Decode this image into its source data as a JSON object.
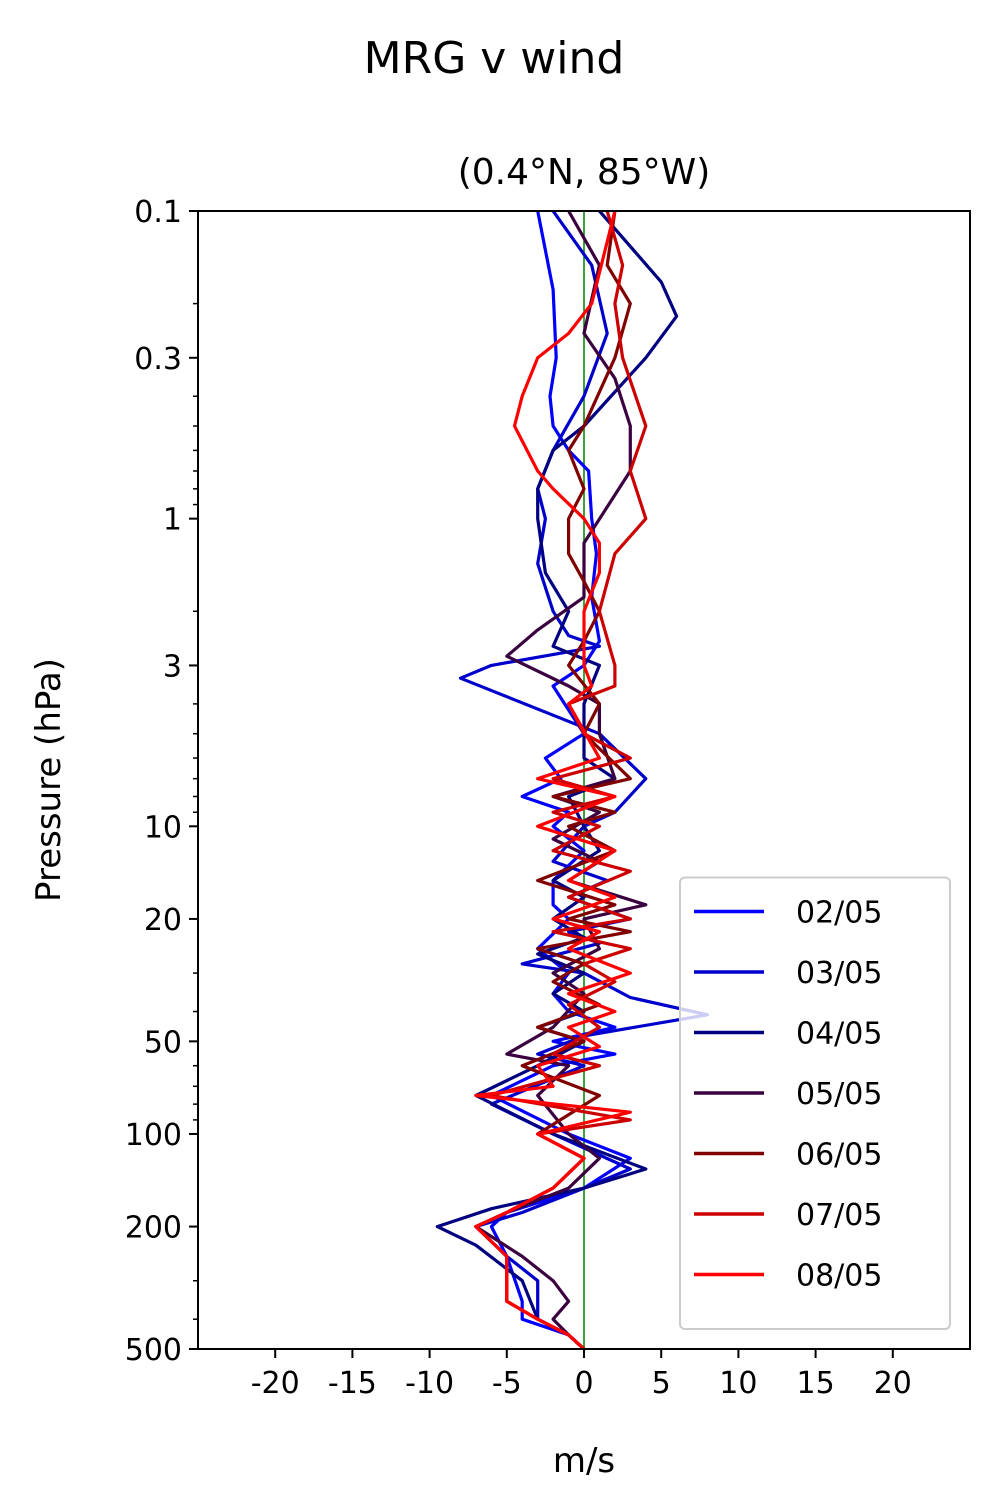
{
  "chart_data": {
    "type": "line",
    "title": "MRG v wind",
    "subtitle": "(0.4°N, 85°W)",
    "xlabel": "m/s",
    "ylabel": "Pressure (hPa)",
    "xlim": [
      -25,
      25
    ],
    "ylim": [
      500,
      0.1
    ],
    "yscale": "log",
    "x_ticks": [
      -20,
      -15,
      -10,
      -5,
      0,
      5,
      10,
      15,
      20
    ],
    "x_tick_labels": [
      "-20",
      "-15",
      "-10",
      "-5",
      "0",
      "5",
      "10",
      "15",
      "20"
    ],
    "y_ticks": [
      0.1,
      0.3,
      1,
      3,
      10,
      20,
      50,
      100,
      200,
      500
    ],
    "y_tick_labels": [
      "0.1",
      "0.3",
      "1",
      "3",
      "10",
      "20",
      "50",
      "100",
      "200",
      "500"
    ],
    "grid": false,
    "legend_position": "lower-right",
    "zero_line_color": "#008000",
    "series": [
      {
        "name": "02/05",
        "color": "#0000ff",
        "points": [
          [
            -3,
            0.1
          ],
          [
            -2,
            0.18
          ],
          [
            -1.8,
            0.3
          ],
          [
            -2.2,
            0.4
          ],
          [
            -2,
            0.5
          ],
          [
            -1,
            0.6
          ],
          [
            0.3,
            0.7
          ],
          [
            0.5,
            1
          ],
          [
            0.8,
            1.3
          ],
          [
            0.5,
            1.8
          ],
          [
            1,
            2.5
          ],
          [
            0,
            3
          ],
          [
            -2,
            3.5
          ],
          [
            0,
            5
          ],
          [
            -2.5,
            6
          ],
          [
            -1.5,
            7
          ],
          [
            -4,
            8
          ],
          [
            -1,
            9
          ],
          [
            -2,
            10
          ],
          [
            0,
            12
          ],
          [
            -2,
            15
          ],
          [
            -2,
            18
          ],
          [
            -1,
            20
          ],
          [
            -3,
            25
          ],
          [
            -1,
            30
          ],
          [
            -2,
            35
          ],
          [
            -1,
            40
          ],
          [
            2,
            45
          ],
          [
            -2,
            50
          ],
          [
            2,
            55
          ],
          [
            -2,
            60
          ],
          [
            -6,
            75
          ],
          [
            -1,
            100
          ],
          [
            3,
            120
          ],
          [
            0,
            150
          ],
          [
            -5,
            180
          ],
          [
            -6,
            200
          ],
          [
            -5,
            250
          ],
          [
            -4,
            350
          ],
          [
            -4,
            400
          ],
          [
            -1,
            450
          ],
          [
            0,
            500
          ]
        ]
      },
      {
        "name": "03/05",
        "color": "#0000cc",
        "points": [
          [
            -2,
            0.1
          ],
          [
            0.5,
            0.15
          ],
          [
            1.5,
            0.25
          ],
          [
            0,
            0.4
          ],
          [
            -2,
            0.6
          ],
          [
            -3,
            0.8
          ],
          [
            -2.5,
            1
          ],
          [
            -3,
            1.4
          ],
          [
            -2,
            2
          ],
          [
            -1,
            2.4
          ],
          [
            1,
            2.6
          ],
          [
            -6,
            3
          ],
          [
            -8,
            3.3
          ],
          [
            1,
            5
          ],
          [
            4,
            7
          ],
          [
            2,
            9
          ],
          [
            0,
            10
          ],
          [
            -2,
            13
          ],
          [
            1.5,
            15
          ],
          [
            -1,
            17
          ],
          [
            3,
            20
          ],
          [
            -1,
            22
          ],
          [
            1,
            24
          ],
          [
            -4,
            28
          ],
          [
            0,
            30
          ],
          [
            3,
            36
          ],
          [
            8,
            41
          ],
          [
            0,
            48
          ],
          [
            -3,
            55
          ],
          [
            0,
            60
          ],
          [
            -6,
            80
          ],
          [
            -2,
            100
          ],
          [
            3,
            130
          ],
          [
            0,
            150
          ],
          [
            -4,
            180
          ],
          [
            -7,
            200
          ],
          [
            -5,
            250
          ],
          [
            -3,
            300
          ],
          [
            -3,
            400
          ],
          [
            -1,
            450
          ],
          [
            0,
            500
          ]
        ]
      },
      {
        "name": "04/05",
        "color": "#000080",
        "points": [
          [
            1,
            0.1
          ],
          [
            5,
            0.17
          ],
          [
            6,
            0.22
          ],
          [
            4,
            0.3
          ],
          [
            0,
            0.5
          ],
          [
            -2,
            0.6
          ],
          [
            -3,
            0.8
          ],
          [
            -3,
            1
          ],
          [
            -2.5,
            1.5
          ],
          [
            -1,
            2
          ],
          [
            -2,
            2.6
          ],
          [
            1,
            3
          ],
          [
            0,
            4
          ],
          [
            0,
            6
          ],
          [
            2,
            7
          ],
          [
            -1,
            8
          ],
          [
            0,
            10
          ],
          [
            1,
            12
          ],
          [
            -2,
            15
          ],
          [
            0,
            17
          ],
          [
            -2,
            20
          ],
          [
            0,
            23
          ],
          [
            -3,
            26
          ],
          [
            0,
            30
          ],
          [
            -2,
            35
          ],
          [
            0,
            40
          ],
          [
            -3,
            45
          ],
          [
            0,
            50
          ],
          [
            -3,
            60
          ],
          [
            -7,
            75
          ],
          [
            -2,
            100
          ],
          [
            4,
            130
          ],
          [
            0,
            150
          ],
          [
            -6,
            175
          ],
          [
            -9.5,
            200
          ],
          [
            -7,
            230
          ],
          [
            -4,
            300
          ],
          [
            -3,
            400
          ],
          [
            -1,
            450
          ],
          [
            0,
            500
          ]
        ]
      },
      {
        "name": "05/05",
        "color": "#3a0040",
        "points": [
          [
            -1,
            0.1
          ],
          [
            1,
            0.15
          ],
          [
            0,
            0.25
          ],
          [
            2,
            0.35
          ],
          [
            3,
            0.5
          ],
          [
            3,
            0.7
          ],
          [
            0,
            1.2
          ],
          [
            0,
            1.8
          ],
          [
            -3,
            2.3
          ],
          [
            -5,
            2.8
          ],
          [
            -1,
            3.5
          ],
          [
            1,
            4
          ],
          [
            1,
            5
          ],
          [
            2,
            7
          ],
          [
            -2,
            8
          ],
          [
            1,
            9
          ],
          [
            -2,
            11
          ],
          [
            1,
            13
          ],
          [
            -1,
            15
          ],
          [
            4,
            18
          ],
          [
            0,
            20
          ],
          [
            1,
            25
          ],
          [
            -2,
            30
          ],
          [
            0,
            35
          ],
          [
            -2,
            45
          ],
          [
            -5,
            55
          ],
          [
            -1,
            60
          ],
          [
            -3,
            75
          ],
          [
            -1,
            100
          ],
          [
            1,
            120
          ],
          [
            -1,
            150
          ],
          [
            -5,
            180
          ],
          [
            -7,
            200
          ],
          [
            -4,
            250
          ],
          [
            -2,
            300
          ],
          [
            -1,
            350
          ],
          [
            -2,
            400
          ],
          [
            -1,
            450
          ],
          [
            0,
            500
          ]
        ]
      },
      {
        "name": "06/05",
        "color": "#800000",
        "points": [
          [
            2,
            0.1
          ],
          [
            1.5,
            0.15
          ],
          [
            3,
            0.2
          ],
          [
            2,
            0.3
          ],
          [
            0,
            0.5
          ],
          [
            -1,
            0.6
          ],
          [
            0,
            0.8
          ],
          [
            -1,
            1
          ],
          [
            -1,
            1.3
          ],
          [
            0,
            1.6
          ],
          [
            1,
            2
          ],
          [
            0,
            2.5
          ],
          [
            -1,
            3
          ],
          [
            1,
            4
          ],
          [
            0,
            5
          ],
          [
            3,
            7
          ],
          [
            -2,
            8
          ],
          [
            2,
            9
          ],
          [
            -1,
            10
          ],
          [
            2,
            12
          ],
          [
            -3,
            15
          ],
          [
            2,
            18
          ],
          [
            -1,
            20
          ],
          [
            3,
            22
          ],
          [
            -3,
            25
          ],
          [
            0,
            28
          ],
          [
            -2,
            32
          ],
          [
            1,
            38
          ],
          [
            -3,
            45
          ],
          [
            0,
            50
          ],
          [
            -4,
            60
          ],
          [
            1,
            75
          ],
          [
            -3,
            100
          ],
          [
            0,
            120
          ],
          [
            -2,
            150
          ],
          [
            -5,
            180
          ],
          [
            -7,
            200
          ],
          [
            -5,
            250
          ],
          [
            -5,
            350
          ],
          [
            -3,
            400
          ],
          [
            -1,
            450
          ],
          [
            0,
            500
          ]
        ]
      },
      {
        "name": "07/05",
        "color": "#cc0000",
        "points": [
          [
            1.5,
            0.1
          ],
          [
            2.5,
            0.15
          ],
          [
            2,
            0.2
          ],
          [
            2.5,
            0.3
          ],
          [
            4,
            0.5
          ],
          [
            3,
            0.7
          ],
          [
            4,
            1
          ],
          [
            2,
            1.3
          ],
          [
            1,
            2
          ],
          [
            2,
            3
          ],
          [
            2,
            3.5
          ],
          [
            -1,
            4
          ],
          [
            0,
            5
          ],
          [
            3,
            6
          ],
          [
            -2,
            7
          ],
          [
            2,
            8
          ],
          [
            -2,
            9
          ],
          [
            1,
            10
          ],
          [
            -2,
            12
          ],
          [
            3,
            14
          ],
          [
            -1,
            17
          ],
          [
            3,
            20
          ],
          [
            -2,
            22
          ],
          [
            3,
            25
          ],
          [
            0,
            28
          ],
          [
            2,
            32
          ],
          [
            -1,
            38
          ],
          [
            1,
            45
          ],
          [
            -2,
            55
          ],
          [
            1,
            60
          ],
          [
            -6,
            75
          ],
          [
            3,
            90
          ],
          [
            -3,
            100
          ],
          [
            0,
            120
          ],
          [
            -2,
            150
          ],
          [
            -5,
            180
          ],
          [
            -7,
            200
          ],
          [
            -5,
            250
          ],
          [
            -5,
            350
          ],
          [
            -3,
            400
          ],
          [
            -1,
            450
          ],
          [
            0,
            500
          ]
        ]
      },
      {
        "name": "08/05",
        "color": "#ff0000",
        "points": [
          [
            2,
            0.1
          ],
          [
            0.5,
            0.2
          ],
          [
            -1,
            0.25
          ],
          [
            -3,
            0.3
          ],
          [
            -4,
            0.4
          ],
          [
            -4.5,
            0.5
          ],
          [
            -3,
            0.7
          ],
          [
            -2,
            0.8
          ],
          [
            0,
            1
          ],
          [
            1,
            1.2
          ],
          [
            1,
            1.5
          ],
          [
            0,
            2
          ],
          [
            0,
            3
          ],
          [
            0.5,
            3.5
          ],
          [
            -1,
            4
          ],
          [
            1,
            6
          ],
          [
            -3,
            7
          ],
          [
            2,
            8
          ],
          [
            -3,
            10
          ],
          [
            2,
            12
          ],
          [
            -1,
            15
          ],
          [
            2,
            17
          ],
          [
            -2,
            20
          ],
          [
            1,
            22
          ],
          [
            -1,
            25
          ],
          [
            3,
            30
          ],
          [
            -1,
            35
          ],
          [
            2,
            40
          ],
          [
            -1,
            45
          ],
          [
            1,
            52
          ],
          [
            -3,
            60
          ],
          [
            -2,
            70
          ],
          [
            -7,
            75
          ],
          [
            3,
            85
          ],
          [
            -3,
            100
          ],
          [
            0,
            120
          ],
          [
            -2,
            150
          ],
          [
            -5,
            180
          ],
          [
            -7,
            200
          ],
          [
            -5,
            250
          ],
          [
            -5,
            350
          ],
          [
            -3,
            400
          ],
          [
            -1,
            450
          ],
          [
            0,
            500
          ]
        ]
      }
    ]
  }
}
